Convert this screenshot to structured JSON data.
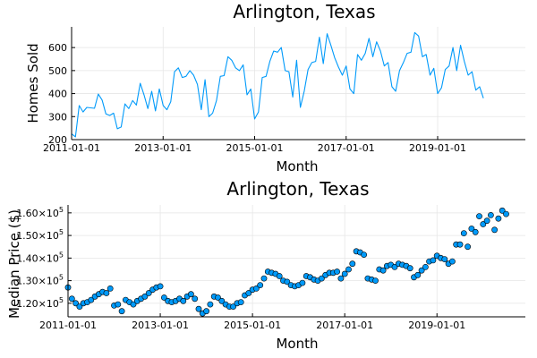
{
  "chart_data": [
    {
      "type": "line",
      "title": "Arlington, Texas",
      "xlabel": "Month",
      "ylabel": "Homes Sold",
      "xlim": [
        "2011-01-01",
        "2020-12-01"
      ],
      "ylim": [
        200,
        690
      ],
      "xticks": [
        "2011-01-01",
        "2013-01-01",
        "2015-01-01",
        "2017-01-01",
        "2019-01-01"
      ],
      "yticks": [
        {
          "value": 200,
          "label": "200"
        },
        {
          "value": 300,
          "label": "300"
        },
        {
          "value": 400,
          "label": "400"
        },
        {
          "value": 500,
          "label": "500"
        },
        {
          "value": 600,
          "label": "600"
        }
      ],
      "color": "#009AFA",
      "start": "2011-01-01",
      "values": [
        225,
        212,
        348,
        320,
        340,
        338,
        336,
        398,
        372,
        312,
        305,
        315,
        247,
        255,
        355,
        335,
        370,
        350,
        445,
        395,
        335,
        410,
        325,
        420,
        348,
        330,
        365,
        495,
        512,
        470,
        475,
        500,
        480,
        440,
        330,
        460,
        300,
        315,
        370,
        475,
        478,
        560,
        545,
        512,
        500,
        525,
        395,
        420,
        290,
        320,
        470,
        475,
        540,
        585,
        580,
        600,
        500,
        495,
        385,
        545,
        340,
        410,
        505,
        535,
        540,
        645,
        530,
        660,
        610,
        555,
        515,
        480,
        520,
        420,
        400,
        570,
        545,
        575,
        640,
        560,
        625,
        585,
        520,
        535,
        430,
        410,
        500,
        535,
        575,
        580,
        665,
        650,
        560,
        570,
        480,
        510,
        400,
        425,
        505,
        520,
        600,
        500,
        610,
        540,
        480,
        495,
        415,
        430,
        380
      ]
    },
    {
      "type": "scatter",
      "title": "Arlington, Texas",
      "xlabel": "Month",
      "ylabel": "Median Price ($)",
      "xlim": [
        "2011-01-01",
        "2020-12-01"
      ],
      "ylim": [
        114000,
        163500
      ],
      "xticks": [
        "2011-01-01",
        "2013-01-01",
        "2015-01-01",
        "2017-01-01",
        "2019-01-01"
      ],
      "yticks": [
        {
          "value": 120000,
          "mantissa": "1.20",
          "base": "10",
          "exp": "5"
        },
        {
          "value": 130000,
          "mantissa": "1.30",
          "base": "10",
          "exp": "5"
        },
        {
          "value": 140000,
          "mantissa": "1.40",
          "base": "10",
          "exp": "5"
        },
        {
          "value": 150000,
          "mantissa": "1.50",
          "base": "10",
          "exp": "5"
        },
        {
          "value": 160000,
          "mantissa": "1.60",
          "base": "10",
          "exp": "5"
        }
      ],
      "color": "#009AFA",
      "start": "2011-01-01",
      "values": [
        127000,
        122000,
        120000,
        118500,
        120000,
        120500,
        121500,
        123000,
        124000,
        125000,
        124500,
        126500,
        119000,
        119500,
        116500,
        121500,
        120500,
        119500,
        121000,
        122000,
        123000,
        124500,
        126000,
        127000,
        127500,
        122500,
        121000,
        120500,
        121000,
        122000,
        121000,
        123000,
        124000,
        122000,
        117500,
        115500,
        116500,
        119500,
        123000,
        122500,
        121000,
        119500,
        118500,
        118500,
        120000,
        120500,
        123500,
        124500,
        126000,
        126500,
        128000,
        131000,
        134000,
        133500,
        133000,
        132000,
        130000,
        129500,
        128000,
        127500,
        128000,
        129000,
        132000,
        131500,
        130500,
        130000,
        131000,
        132500,
        133500,
        133500,
        134000,
        131000,
        133000,
        135000,
        137500,
        143000,
        142500,
        141500,
        131000,
        130500,
        130000,
        135000,
        134500,
        136500,
        137000,
        136000,
        137500,
        137000,
        136500,
        135500,
        131500,
        132500,
        134500,
        136000,
        138500,
        139000,
        141000,
        140000,
        139500,
        137500,
        138500,
        146000,
        146000,
        151000,
        145000,
        153000,
        151500,
        158500,
        155000,
        156500,
        159000,
        152500,
        157500,
        161000,
        159500
      ]
    }
  ]
}
